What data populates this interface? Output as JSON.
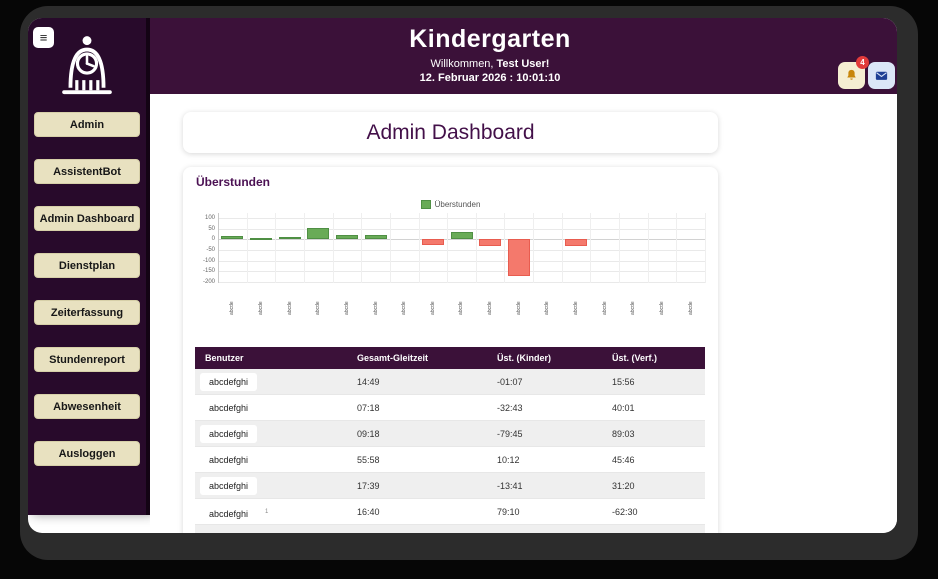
{
  "window": {
    "menu_icon": "≡"
  },
  "sidebar": {
    "items": [
      {
        "label": "Admin"
      },
      {
        "label": "AssistentBot"
      },
      {
        "label": "Admin Dashboard"
      },
      {
        "label": "Dienstplan"
      },
      {
        "label": "Zeiterfassung"
      },
      {
        "label": "Stundenreport"
      },
      {
        "label": "Abwesenheit"
      },
      {
        "label": "Ausloggen"
      }
    ]
  },
  "header": {
    "title": "Kindergarten",
    "welcome_prefix": "Willkommen,",
    "user_name": "Test User!",
    "datetime": "12. Februar 2026 : 10:01:10",
    "notification_badge": "4"
  },
  "main": {
    "page_title": "Admin Dashboard",
    "section_title": "Überstunden"
  },
  "chart_data": {
    "type": "bar",
    "title": "",
    "legend": [
      {
        "label": "Überstunden",
        "color": "#69ab57"
      }
    ],
    "legend_position": "top",
    "categories": [
      "abcde",
      "abcde",
      "abcde",
      "abcde",
      "abcde",
      "abcde",
      "abcde",
      "abcde",
      "abcde",
      "abcde",
      "abcde",
      "abcde",
      "abcde",
      "abcde",
      "abcde",
      "abcde",
      "abcde"
    ],
    "values": [
      15,
      6,
      10,
      55,
      20,
      18,
      0,
      -28,
      35,
      -30,
      -170,
      0,
      -30,
      0,
      0,
      0,
      0
    ],
    "yticks": [
      100,
      50,
      0,
      -50,
      -100,
      -150,
      -200
    ],
    "ylim": [
      -200,
      100
    ],
    "grid": true,
    "positive_color": "#69ab57",
    "positive_border": "#4f8f44",
    "negative_color": "#f4796c",
    "negative_border": "#e85c4f"
  },
  "table": {
    "columns": [
      "Benutzer",
      "Gesamt-Gleitzeit",
      "Üst. (Kinder)",
      "Üst. (Verf.)"
    ],
    "rows": [
      {
        "name": "abcdefghi",
        "note": "",
        "gleitzeit": "14:49",
        "kinder": "-01:07",
        "verf": "15:56"
      },
      {
        "name": "abcdefghi",
        "note": "",
        "gleitzeit": "07:18",
        "kinder": "-32:43",
        "verf": "40:01"
      },
      {
        "name": "abcdefghi",
        "note": "",
        "gleitzeit": "09:18",
        "kinder": "-79:45",
        "verf": "89:03"
      },
      {
        "name": "abcdefghi",
        "note": "",
        "gleitzeit": "55:58",
        "kinder": "10:12",
        "verf": "45:46"
      },
      {
        "name": "abcdefghi",
        "note": "",
        "gleitzeit": "17:39",
        "kinder": "-13:41",
        "verf": "31:20"
      },
      {
        "name": "abcdefghi",
        "note": "1",
        "gleitzeit": "16:40",
        "kinder": "79:10",
        "verf": "-62:30"
      }
    ]
  }
}
